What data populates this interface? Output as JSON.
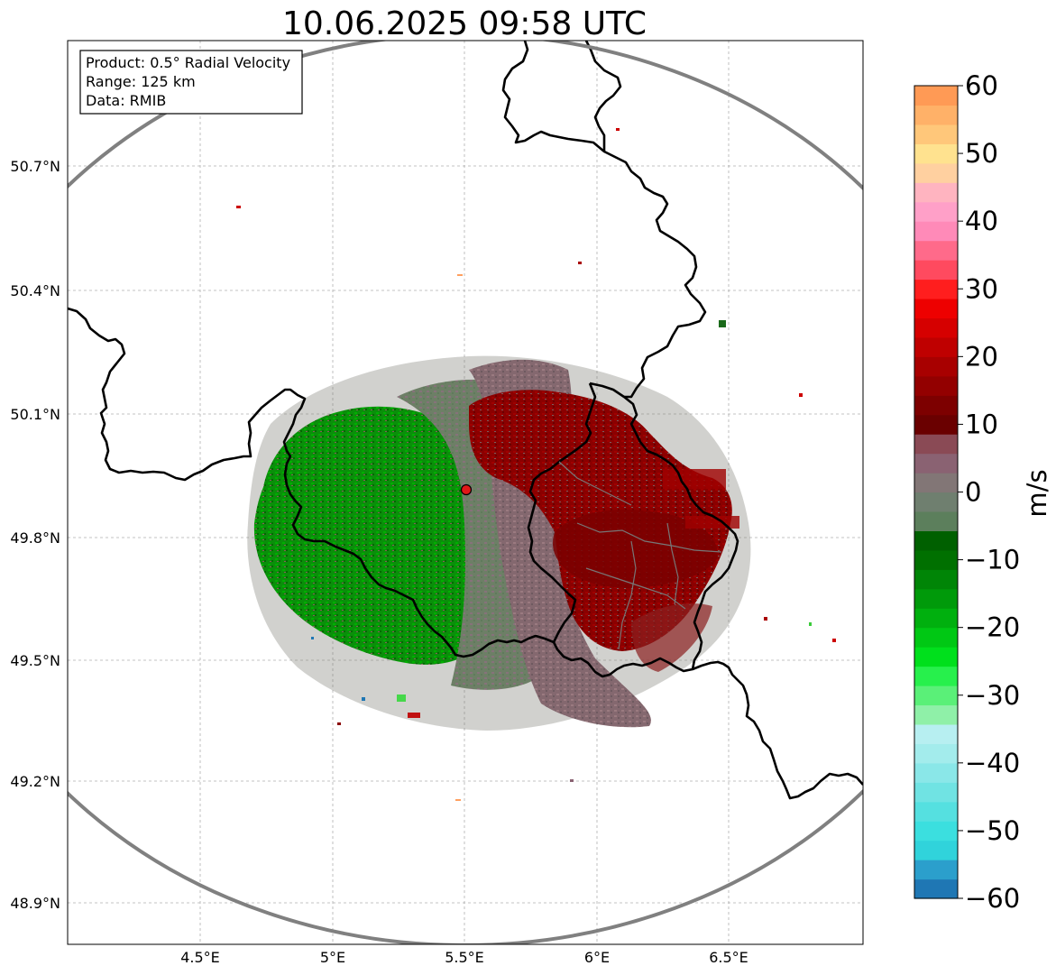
{
  "title": "10.06.2025 09:58 UTC",
  "info_box": {
    "product": "Product: 0.5° Radial Velocity",
    "range": "Range: 125 km",
    "data": "Data: RMIB"
  },
  "axes": {
    "lon_ticks": [
      "4.5°E",
      "5°E",
      "5.5°E",
      "6°E",
      "6.5°E"
    ],
    "lat_ticks": [
      "50.7°N",
      "50.4°N",
      "50.1°N",
      "49.8°N",
      "49.5°N",
      "49.2°N",
      "48.9°N"
    ]
  },
  "colorbar": {
    "label": "m/s",
    "ticks": [
      "60",
      "50",
      "40",
      "30",
      "20",
      "10",
      "0",
      "−10",
      "−20",
      "−30",
      "−40",
      "−50",
      "−60"
    ],
    "vmin": -60,
    "vmax": 60,
    "colors": [
      "#1f77b4",
      "#2b9fcc",
      "#30d3db",
      "#3bdfdf",
      "#55e0e0",
      "#70e3e3",
      "#8ae7e8",
      "#a3ecec",
      "#b7eff1",
      "#8ff0a8",
      "#5af078",
      "#27f04c",
      "#00e01c",
      "#00c814",
      "#00b00e",
      "#009a0a",
      "#008506",
      "#007000",
      "#006000",
      "#5c7f5c",
      "#6f7f6f",
      "#827676",
      "#8a6272",
      "#8a4a55",
      "#6a0000",
      "#7d0000",
      "#930000",
      "#a80000",
      "#bf0000",
      "#d60000",
      "#ee0000",
      "#ff1e1e",
      "#ff4a5f",
      "#ff6a8a",
      "#ff8ab8",
      "#ffa0c8",
      "#ffb4c0",
      "#ffd0a0",
      "#ffe28f",
      "#ffc77a",
      "#ffb168",
      "#ff9a55"
    ]
  },
  "radar": {
    "site_label": "",
    "range_km": 125,
    "regions": [
      {
        "name": "outbound-core",
        "color": "#8b0000"
      },
      {
        "name": "inbound-core",
        "color": "#079c07"
      },
      {
        "name": "zero-band",
        "color": "#6c7f63"
      }
    ]
  }
}
